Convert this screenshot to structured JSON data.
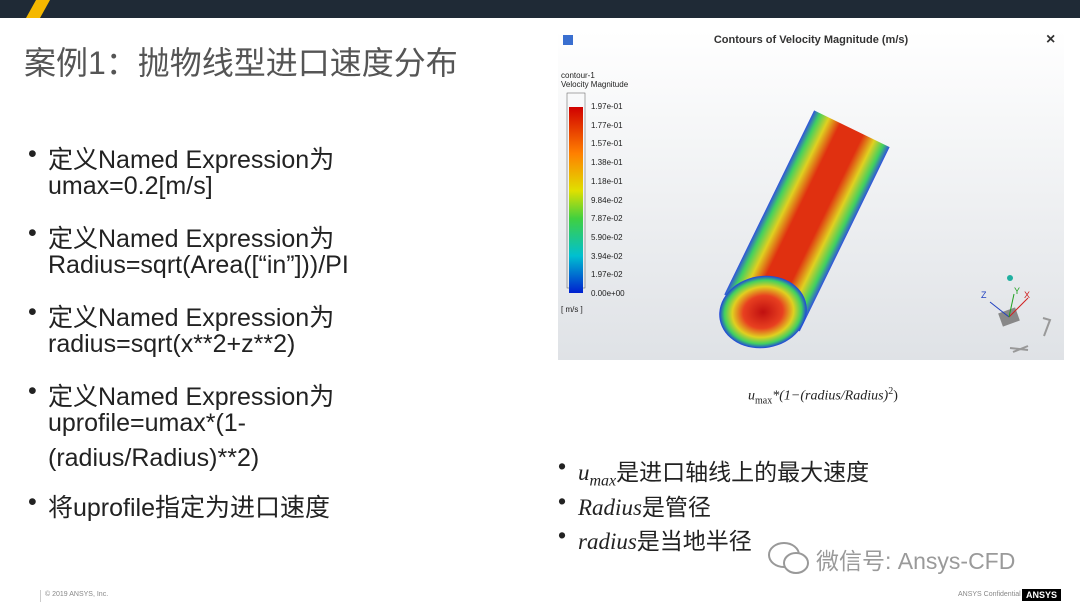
{
  "title": "案例1：抛物线型进口速度分布",
  "left_bullets": [
    {
      "lines": [
        "定义Named Expression为",
        "umax=0.2[m/s]"
      ]
    },
    {
      "lines": [
        "定义Named Expression为",
        "Radius=sqrt(Area([“in”]))/PI"
      ]
    },
    {
      "lines": [
        "定义Named Expression为",
        "radius=sqrt(x**2+z**2)"
      ]
    },
    {
      "lines": [
        "定义Named Expression为",
        "uprofile=umax*(1-",
        "(radius/Radius)**2)"
      ]
    },
    {
      "lines": [
        "将uprofile指定为进口速度"
      ]
    }
  ],
  "figure": {
    "title": "Contours of Velocity Magnitude (m/s)",
    "close": "×",
    "contour_name": "contour-1",
    "variable": "Velocity Magnitude",
    "colorbar_labels": [
      "1.97e-01",
      "1.77e-01",
      "1.57e-01",
      "1.38e-01",
      "1.18e-01",
      "9.84e-02",
      "7.87e-02",
      "5.90e-02",
      "3.94e-02",
      "1.97e-02",
      "0.00e+00"
    ],
    "unit": "[ m/s ]",
    "axis_labels": [
      "Z",
      "Y",
      "X"
    ]
  },
  "formula": {
    "u": "u",
    "sub": "max",
    "body": "*(1−(radius/Radius)",
    "sup": "2",
    "end": ")"
  },
  "right_bullets": [
    {
      "math": "u",
      "sub": "max",
      "text": "是进口轴线上的最大速度"
    },
    {
      "math": "Radius",
      "text": "是管径"
    },
    {
      "math": "radius",
      "text": "是当地半径"
    }
  ],
  "watermark": "微信号: Ansys-CFD",
  "footer": {
    "copyright": "© 2019 ANSYS, Inc.",
    "confidential": "ANSYS Confidential",
    "logo": "ANSYS"
  }
}
